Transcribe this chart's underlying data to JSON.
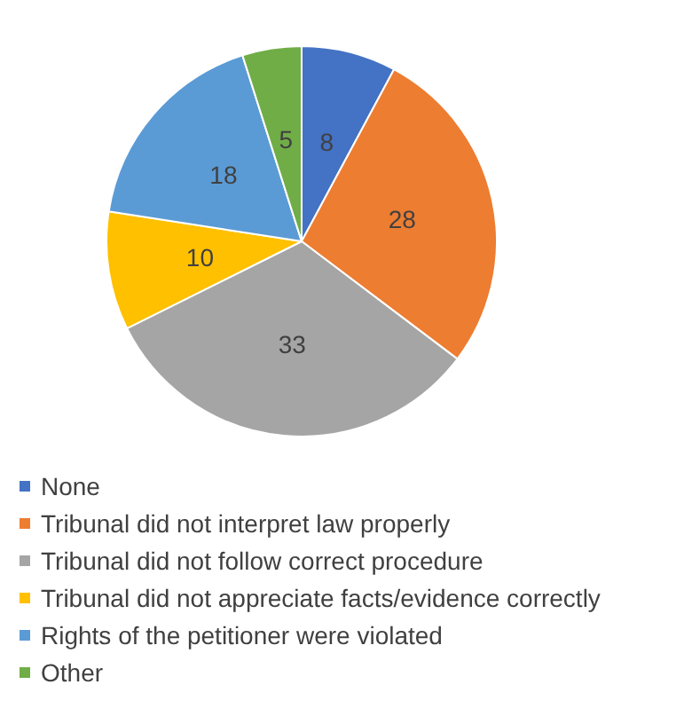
{
  "chart_data": {
    "type": "pie",
    "categories": [
      "None",
      "Tribunal did not interpret law properly",
      "Tribunal did not follow correct procedure",
      "Tribunal did not appreciate facts/evidence correctly",
      "Rights of the petitioner were violated",
      "Other"
    ],
    "values": [
      8,
      28,
      33,
      10,
      18,
      5
    ],
    "colors": [
      "#4472c4",
      "#ed7d31",
      "#a5a5a5",
      "#ffc000",
      "#5b9bd5",
      "#70ad47"
    ],
    "data_labels": true,
    "legend": "bottom"
  }
}
